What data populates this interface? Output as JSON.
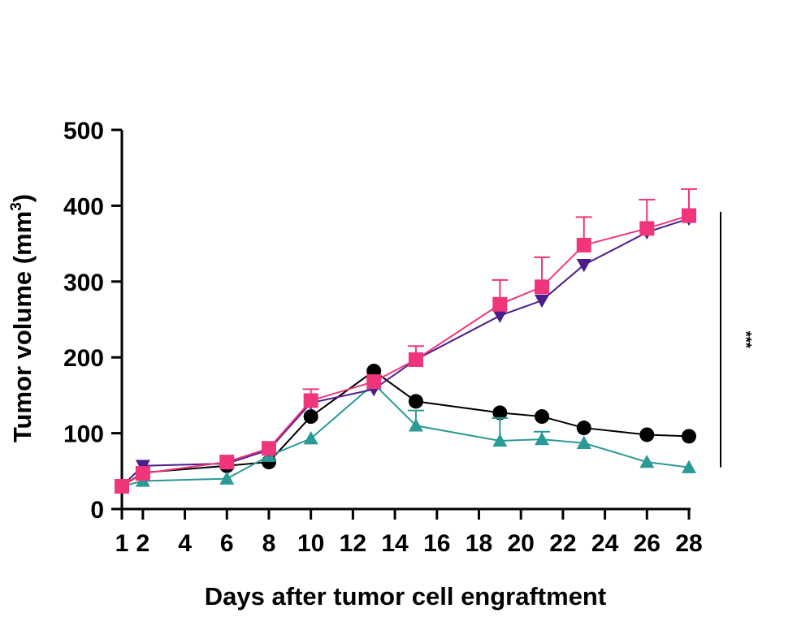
{
  "chart_data": {
    "type": "line",
    "title": "",
    "xlabel": "Days after tumor cell engraftment",
    "ylabel": "Tumor volume (mm",
    "ylabel_sup": "3",
    "ylabel_end": ")",
    "xlim": [
      1,
      28
    ],
    "ylim": [
      0,
      500
    ],
    "x_ticks": [
      1,
      2,
      4,
      6,
      8,
      10,
      12,
      14,
      16,
      18,
      20,
      22,
      24,
      26,
      28
    ],
    "y_ticks": [
      0,
      100,
      200,
      300,
      400,
      500
    ],
    "grid": false,
    "x": [
      1,
      2,
      6,
      8,
      10,
      13,
      15,
      19,
      21,
      23,
      26,
      28
    ],
    "series": [
      {
        "marker": "circle",
        "color": "#000000",
        "values": [
          30,
          48,
          57,
          62,
          122,
          182,
          142,
          127,
          122,
          107,
          98,
          96
        ],
        "error": [
          0,
          0,
          0,
          0,
          0,
          0,
          0,
          0,
          0,
          0,
          0,
          0
        ]
      },
      {
        "marker": "triangle-up",
        "color": "#2a9a95",
        "values": [
          30,
          37,
          40,
          70,
          93,
          165,
          110,
          90,
          92,
          87,
          62,
          55
        ],
        "error": [
          0,
          0,
          0,
          0,
          0,
          0,
          20,
          30,
          10,
          0,
          0,
          0
        ]
      },
      {
        "marker": "triangle-down",
        "color": "#4b1d8c",
        "values": [
          30,
          57,
          60,
          78,
          140,
          158,
          197,
          255,
          275,
          322,
          365,
          383
        ],
        "error": [
          0,
          0,
          0,
          0,
          0,
          0,
          0,
          0,
          0,
          0,
          0,
          0
        ]
      },
      {
        "marker": "square",
        "color": "#f0357a",
        "values": [
          30,
          47,
          62,
          80,
          143,
          168,
          197,
          270,
          293,
          348,
          370,
          387
        ],
        "error": [
          0,
          0,
          0,
          0,
          15,
          0,
          18,
          32,
          39,
          37,
          38,
          35
        ]
      }
    ],
    "annotations": [
      {
        "text": "***",
        "type": "significance-bar",
        "from": 55,
        "to": 392
      }
    ]
  }
}
